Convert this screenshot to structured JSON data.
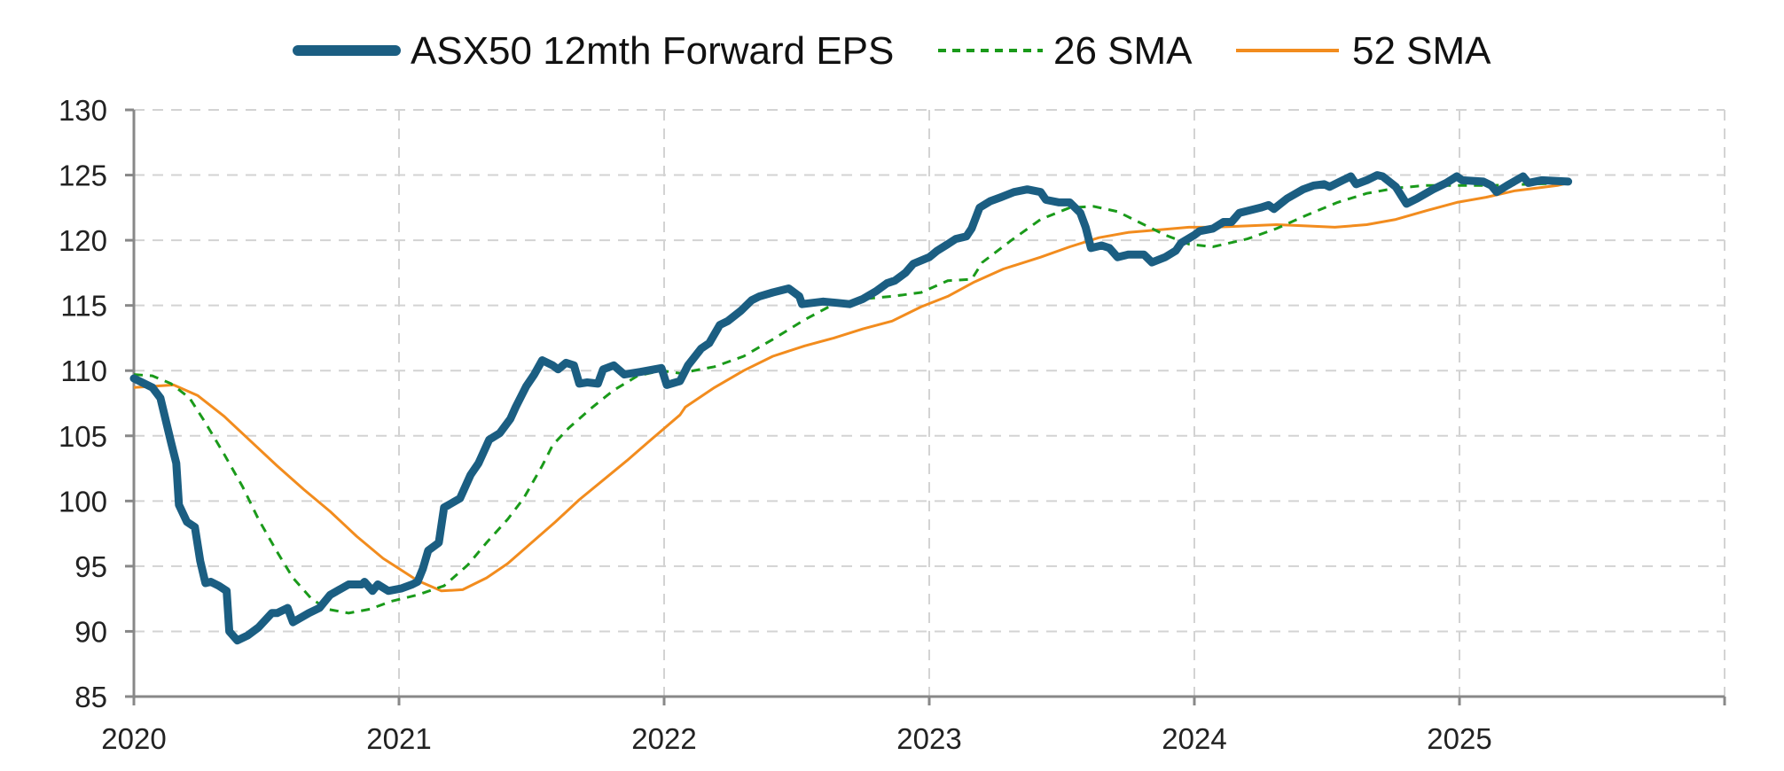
{
  "chart_data": {
    "type": "line",
    "title": "",
    "xlabel": "",
    "ylabel": "",
    "xlim": [
      2020,
      2026
    ],
    "ylim": [
      85,
      130
    ],
    "grid": true,
    "legend_position": "top-center",
    "x_ticks": [
      "2020",
      "2021",
      "2022",
      "2023",
      "2024",
      "2025"
    ],
    "y_ticks": [
      "85",
      "90",
      "95",
      "100",
      "105",
      "110",
      "115",
      "120",
      "125",
      "130"
    ],
    "series": [
      {
        "name": "ASX50 12mth Forward EPS",
        "color": "#1b5e82",
        "style": "solid-thick",
        "points": [
          [
            2020.0,
            109.4
          ],
          [
            2020.07,
            108.7
          ],
          [
            2020.1,
            107.9
          ],
          [
            2020.14,
            104.5
          ],
          [
            2020.16,
            102.9
          ],
          [
            2020.17,
            99.7
          ],
          [
            2020.2,
            98.4
          ],
          [
            2020.23,
            98.0
          ],
          [
            2020.25,
            95.4
          ],
          [
            2020.27,
            93.7
          ],
          [
            2020.29,
            93.8
          ],
          [
            2020.32,
            93.5
          ],
          [
            2020.35,
            93.1
          ],
          [
            2020.36,
            90.0
          ],
          [
            2020.39,
            89.3
          ],
          [
            2020.43,
            89.7
          ],
          [
            2020.47,
            90.3
          ],
          [
            2020.52,
            91.4
          ],
          [
            2020.54,
            91.4
          ],
          [
            2020.58,
            91.8
          ],
          [
            2020.6,
            90.7
          ],
          [
            2020.66,
            91.4
          ],
          [
            2020.7,
            91.8
          ],
          [
            2020.74,
            92.8
          ],
          [
            2020.81,
            93.6
          ],
          [
            2020.86,
            93.6
          ],
          [
            2020.87,
            93.8
          ],
          [
            2020.9,
            93.1
          ],
          [
            2020.92,
            93.6
          ],
          [
            2020.96,
            93.1
          ],
          [
            2021.01,
            93.3
          ],
          [
            2021.05,
            93.6
          ],
          [
            2021.07,
            93.8
          ],
          [
            2021.09,
            94.8
          ],
          [
            2021.11,
            96.2
          ],
          [
            2021.15,
            96.8
          ],
          [
            2021.17,
            99.5
          ],
          [
            2021.23,
            100.2
          ],
          [
            2021.27,
            102.0
          ],
          [
            2021.3,
            102.9
          ],
          [
            2021.34,
            104.7
          ],
          [
            2021.38,
            105.2
          ],
          [
            2021.42,
            106.3
          ],
          [
            2021.44,
            107.2
          ],
          [
            2021.48,
            108.8
          ],
          [
            2021.51,
            109.7
          ],
          [
            2021.54,
            110.8
          ],
          [
            2021.58,
            110.4
          ],
          [
            2021.6,
            110.1
          ],
          [
            2021.63,
            110.6
          ],
          [
            2021.66,
            110.4
          ],
          [
            2021.68,
            109.0
          ],
          [
            2021.71,
            109.1
          ],
          [
            2021.75,
            109.0
          ],
          [
            2021.77,
            110.1
          ],
          [
            2021.81,
            110.4
          ],
          [
            2021.85,
            109.7
          ],
          [
            2021.91,
            109.9
          ],
          [
            2021.99,
            110.2
          ],
          [
            2022.01,
            108.9
          ],
          [
            2022.06,
            109.2
          ],
          [
            2022.09,
            110.4
          ],
          [
            2022.14,
            111.7
          ],
          [
            2022.17,
            112.1
          ],
          [
            2022.21,
            113.5
          ],
          [
            2022.24,
            113.8
          ],
          [
            2022.29,
            114.6
          ],
          [
            2022.33,
            115.4
          ],
          [
            2022.36,
            115.7
          ],
          [
            2022.41,
            116.0
          ],
          [
            2022.47,
            116.3
          ],
          [
            2022.51,
            115.7
          ],
          [
            2022.52,
            115.1
          ],
          [
            2022.6,
            115.3
          ],
          [
            2022.65,
            115.2
          ],
          [
            2022.7,
            115.1
          ],
          [
            2022.75,
            115.5
          ],
          [
            2022.8,
            116.1
          ],
          [
            2022.84,
            116.7
          ],
          [
            2022.87,
            116.9
          ],
          [
            2022.91,
            117.5
          ],
          [
            2022.94,
            118.2
          ],
          [
            2023.0,
            118.7
          ],
          [
            2023.03,
            119.2
          ],
          [
            2023.07,
            119.7
          ],
          [
            2023.1,
            120.1
          ],
          [
            2023.14,
            120.3
          ],
          [
            2023.16,
            120.9
          ],
          [
            2023.19,
            122.5
          ],
          [
            2023.23,
            123.0
          ],
          [
            2023.27,
            123.3
          ],
          [
            2023.32,
            123.7
          ],
          [
            2023.37,
            123.9
          ],
          [
            2023.42,
            123.7
          ],
          [
            2023.44,
            123.1
          ],
          [
            2023.49,
            122.9
          ],
          [
            2023.53,
            122.9
          ],
          [
            2023.57,
            122.1
          ],
          [
            2023.59,
            121.0
          ],
          [
            2023.61,
            119.4
          ],
          [
            2023.65,
            119.6
          ],
          [
            2023.68,
            119.4
          ],
          [
            2023.71,
            118.7
          ],
          [
            2023.75,
            118.9
          ],
          [
            2023.81,
            118.9
          ],
          [
            2023.84,
            118.3
          ],
          [
            2023.89,
            118.7
          ],
          [
            2023.93,
            119.2
          ],
          [
            2023.95,
            119.8
          ],
          [
            2024.0,
            120.4
          ],
          [
            2024.02,
            120.7
          ],
          [
            2024.07,
            120.9
          ],
          [
            2024.11,
            121.4
          ],
          [
            2024.14,
            121.4
          ],
          [
            2024.17,
            122.1
          ],
          [
            2024.21,
            122.3
          ],
          [
            2024.25,
            122.5
          ],
          [
            2024.28,
            122.7
          ],
          [
            2024.3,
            122.4
          ],
          [
            2024.35,
            123.2
          ],
          [
            2024.41,
            123.9
          ],
          [
            2024.45,
            124.2
          ],
          [
            2024.49,
            124.3
          ],
          [
            2024.51,
            124.1
          ],
          [
            2024.56,
            124.6
          ],
          [
            2024.59,
            124.9
          ],
          [
            2024.61,
            124.3
          ],
          [
            2024.65,
            124.6
          ],
          [
            2024.69,
            125.0
          ],
          [
            2024.71,
            124.9
          ],
          [
            2024.76,
            124.1
          ],
          [
            2024.8,
            122.8
          ],
          [
            2024.84,
            123.2
          ],
          [
            2024.9,
            123.9
          ],
          [
            2024.95,
            124.4
          ],
          [
            2024.99,
            124.9
          ],
          [
            2025.01,
            124.6
          ],
          [
            2025.09,
            124.5
          ],
          [
            2025.12,
            124.2
          ],
          [
            2025.14,
            123.7
          ],
          [
            2025.18,
            124.2
          ],
          [
            2025.24,
            124.9
          ],
          [
            2025.26,
            124.4
          ],
          [
            2025.31,
            124.6
          ],
          [
            2025.41,
            124.5
          ]
        ]
      },
      {
        "name": "26 SMA",
        "color": "#1a9a1a",
        "style": "dashed",
        "points": [
          [
            2020.0,
            109.7
          ],
          [
            2020.07,
            109.6
          ],
          [
            2020.14,
            109.0
          ],
          [
            2020.21,
            107.9
          ],
          [
            2020.27,
            106.0
          ],
          [
            2020.34,
            103.6
          ],
          [
            2020.41,
            101.1
          ],
          [
            2020.47,
            98.6
          ],
          [
            2020.54,
            96.1
          ],
          [
            2020.6,
            94.1
          ],
          [
            2020.67,
            92.5
          ],
          [
            2020.73,
            91.7
          ],
          [
            2020.81,
            91.4
          ],
          [
            2020.89,
            91.7
          ],
          [
            2020.97,
            92.3
          ],
          [
            2021.07,
            92.8
          ],
          [
            2021.17,
            93.5
          ],
          [
            2021.26,
            95.1
          ],
          [
            2021.33,
            96.8
          ],
          [
            2021.41,
            98.6
          ],
          [
            2021.47,
            100.2
          ],
          [
            2021.54,
            102.7
          ],
          [
            2021.58,
            104.3
          ],
          [
            2021.64,
            105.6
          ],
          [
            2021.73,
            107.2
          ],
          [
            2021.81,
            108.5
          ],
          [
            2021.9,
            109.6
          ],
          [
            2021.99,
            110.0
          ],
          [
            2022.06,
            109.8
          ],
          [
            2022.19,
            110.3
          ],
          [
            2022.3,
            111.1
          ],
          [
            2022.41,
            112.4
          ],
          [
            2022.53,
            113.9
          ],
          [
            2022.64,
            115.1
          ],
          [
            2022.75,
            115.5
          ],
          [
            2022.86,
            115.7
          ],
          [
            2022.97,
            116.0
          ],
          [
            2023.07,
            116.9
          ],
          [
            2023.16,
            117.0
          ],
          [
            2023.2,
            118.3
          ],
          [
            2023.31,
            120.0
          ],
          [
            2023.42,
            121.6
          ],
          [
            2023.53,
            122.5
          ],
          [
            2023.62,
            122.6
          ],
          [
            2023.71,
            122.2
          ],
          [
            2023.8,
            121.3
          ],
          [
            2023.89,
            120.4
          ],
          [
            2023.98,
            119.7
          ],
          [
            2024.07,
            119.5
          ],
          [
            2024.2,
            120.1
          ],
          [
            2024.31,
            120.9
          ],
          [
            2024.42,
            121.9
          ],
          [
            2024.54,
            122.9
          ],
          [
            2024.65,
            123.6
          ],
          [
            2024.76,
            124.0
          ],
          [
            2024.87,
            124.2
          ],
          [
            2024.98,
            124.2
          ],
          [
            2025.12,
            124.2
          ],
          [
            2025.41,
            124.4
          ]
        ]
      },
      {
        "name": "52 SMA",
        "color": "#f28c1e",
        "style": "solid",
        "points": [
          [
            2020.0,
            108.7
          ],
          [
            2020.15,
            108.9
          ],
          [
            2020.24,
            108.1
          ],
          [
            2020.34,
            106.5
          ],
          [
            2020.44,
            104.6
          ],
          [
            2020.54,
            102.7
          ],
          [
            2020.64,
            100.9
          ],
          [
            2020.74,
            99.2
          ],
          [
            2020.84,
            97.3
          ],
          [
            2020.94,
            95.6
          ],
          [
            2021.07,
            93.9
          ],
          [
            2021.16,
            93.1
          ],
          [
            2021.24,
            93.2
          ],
          [
            2021.33,
            94.1
          ],
          [
            2021.41,
            95.2
          ],
          [
            2021.5,
            96.8
          ],
          [
            2021.59,
            98.4
          ],
          [
            2021.68,
            100.1
          ],
          [
            2021.77,
            101.6
          ],
          [
            2021.86,
            103.1
          ],
          [
            2021.95,
            104.7
          ],
          [
            2022.06,
            106.6
          ],
          [
            2022.08,
            107.2
          ],
          [
            2022.19,
            108.7
          ],
          [
            2022.3,
            110.0
          ],
          [
            2022.41,
            111.1
          ],
          [
            2022.53,
            111.9
          ],
          [
            2022.64,
            112.5
          ],
          [
            2022.75,
            113.2
          ],
          [
            2022.86,
            113.8
          ],
          [
            2022.97,
            114.9
          ],
          [
            2023.07,
            115.7
          ],
          [
            2023.17,
            116.8
          ],
          [
            2023.28,
            117.8
          ],
          [
            2023.42,
            118.7
          ],
          [
            2023.53,
            119.5
          ],
          [
            2023.64,
            120.2
          ],
          [
            2023.75,
            120.6
          ],
          [
            2023.87,
            120.8
          ],
          [
            2023.98,
            121.0
          ],
          [
            2024.07,
            121.0
          ],
          [
            2024.2,
            121.1
          ],
          [
            2024.31,
            121.2
          ],
          [
            2024.42,
            121.1
          ],
          [
            2024.53,
            121.0
          ],
          [
            2024.65,
            121.2
          ],
          [
            2024.76,
            121.6
          ],
          [
            2024.88,
            122.3
          ],
          [
            2024.99,
            122.9
          ],
          [
            2025.1,
            123.3
          ],
          [
            2025.21,
            123.8
          ],
          [
            2025.37,
            124.2
          ],
          [
            2025.41,
            124.4
          ]
        ]
      }
    ]
  }
}
